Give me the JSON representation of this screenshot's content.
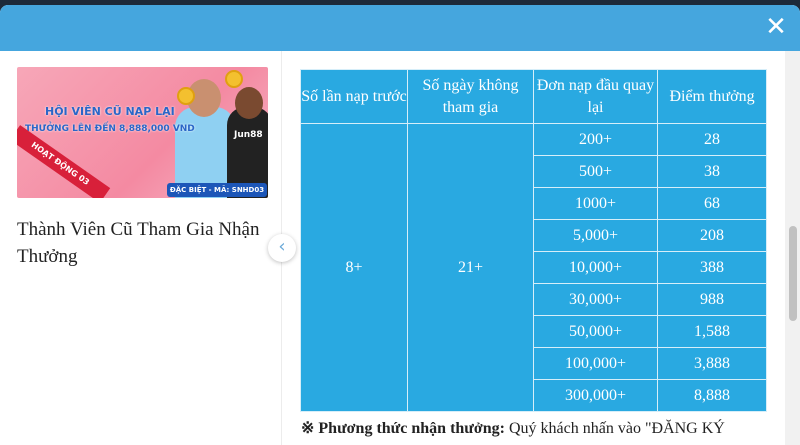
{
  "modal": {
    "close_icon": "close-icon"
  },
  "promo": {
    "banner": {
      "headline": "HỘI VIÊN CŨ NẠP LẠI",
      "subline": "THƯỞNG LÊN ĐẾN 8,888,000 VND",
      "ribbon": "HOẠT ĐỘNG 03",
      "code": "ĐẶC BIỆT - MÃ: SNHD03",
      "brand": "Jun88"
    },
    "title": "Thành Viên Cũ Tham Gia Nhận Thưởng",
    "prev_icon": "chevron-left-icon"
  },
  "table": {
    "headers": [
      "Số lần nạp trước",
      "Số ngày không tham gia",
      "Đơn nạp đầu quay lại",
      "Điểm thưởng"
    ],
    "deposits_before": "8+",
    "days_inactive": "21+",
    "rows": [
      {
        "deposit": "200+",
        "points": "28"
      },
      {
        "deposit": "500+",
        "points": "38"
      },
      {
        "deposit": "1000+",
        "points": "68"
      },
      {
        "deposit": "5,000+",
        "points": "208"
      },
      {
        "deposit": "10,000+",
        "points": "388"
      },
      {
        "deposit": "30,000+",
        "points": "988"
      },
      {
        "deposit": "50,000+",
        "points": "1,588"
      },
      {
        "deposit": "100,000+",
        "points": "3,888"
      },
      {
        "deposit": "300,000+",
        "points": "8,888"
      }
    ]
  },
  "note": {
    "label": "※ Phương thức nhận thưởng:",
    "text": " Quý khách nhấn vào \"ĐĂNG KÝ"
  },
  "colors": {
    "header": "#45a6de",
    "table": "#29a9e1"
  }
}
